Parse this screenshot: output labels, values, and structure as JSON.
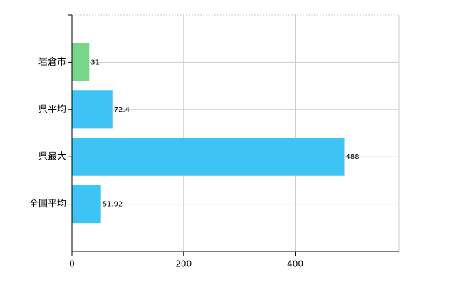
{
  "chart_data": {
    "type": "hbar",
    "categories": [
      "岩倉市",
      "県平均",
      "県最大",
      "全国平均"
    ],
    "values": [
      31,
      72.4,
      488,
      51.92
    ],
    "colors": [
      "#77d68a",
      "#3ec3f5",
      "#3ec3f5",
      "#3ec3f5"
    ],
    "xlim": [
      0,
      585.6
    ],
    "xticks": [
      0,
      200,
      400
    ],
    "grid": true
  }
}
